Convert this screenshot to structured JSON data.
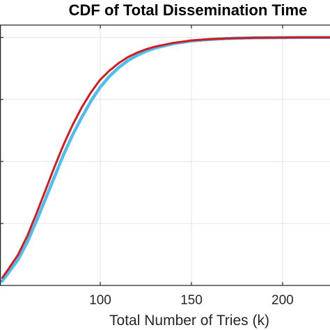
{
  "chart_data": {
    "type": "line",
    "title": "CDF of Total Dissemination Time",
    "xlabel": "Total Number of Tries (k)",
    "ylabel": "",
    "xlim": [
      45,
      226
    ],
    "ylim": [
      0,
      1.05
    ],
    "x_ticks": [
      "100",
      "150",
      "200"
    ],
    "grid": true,
    "series": [
      {
        "color": "#4DBEEE",
        "style": "stepped-markers",
        "x": [
          46,
          50,
          55,
          60,
          65,
          70,
          75,
          80,
          85,
          90,
          95,
          100,
          105,
          110,
          115,
          120,
          125,
          130,
          140,
          150,
          160,
          170,
          180,
          190,
          200,
          210,
          226
        ],
        "y": [
          0.016,
          0.055,
          0.105,
          0.175,
          0.26,
          0.35,
          0.44,
          0.53,
          0.61,
          0.68,
          0.745,
          0.8,
          0.843,
          0.878,
          0.906,
          0.927,
          0.944,
          0.957,
          0.975,
          0.986,
          0.992,
          0.996,
          0.998,
          0.999,
          0.9995,
          1.0,
          1.0
        ]
      },
      {
        "color": "#D7191C",
        "style": "solid",
        "x": [
          46,
          50,
          55,
          60,
          65,
          70,
          75,
          80,
          85,
          90,
          95,
          100,
          105,
          110,
          115,
          120,
          125,
          130,
          140,
          150,
          160,
          170,
          180,
          190,
          200,
          210,
          226
        ],
        "y": [
          0.028,
          0.07,
          0.125,
          0.2,
          0.29,
          0.385,
          0.48,
          0.57,
          0.65,
          0.72,
          0.78,
          0.83,
          0.866,
          0.896,
          0.92,
          0.938,
          0.952,
          0.963,
          0.978,
          0.988,
          0.993,
          0.996,
          0.998,
          0.999,
          0.9995,
          1.0,
          1.0
        ]
      }
    ]
  }
}
